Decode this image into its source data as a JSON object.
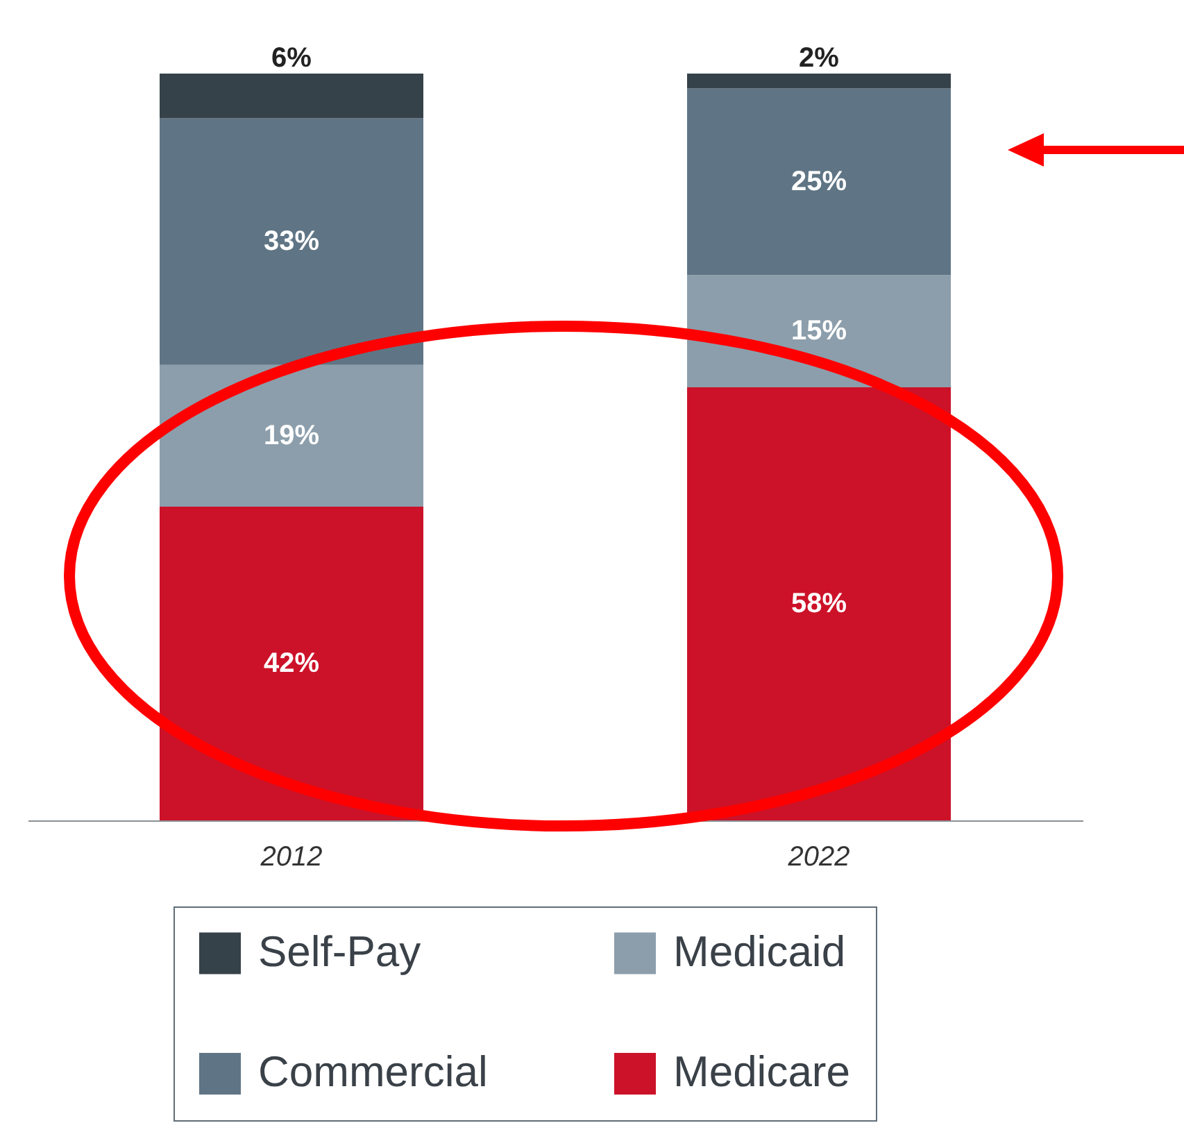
{
  "chart_data": {
    "type": "bar",
    "stacked": true,
    "categories": [
      "2012",
      "2022"
    ],
    "series": [
      {
        "name": "Medicare",
        "color": "#cc1229",
        "values": [
          42,
          58
        ],
        "value_labels": [
          "42%",
          "58%"
        ]
      },
      {
        "name": "Medicaid",
        "color": "#8c9eab",
        "values": [
          19,
          15
        ],
        "value_labels": [
          "19%",
          "15%"
        ]
      },
      {
        "name": "Commercial",
        "color": "#5f7585",
        "values": [
          33,
          25
        ],
        "value_labels": [
          "33%",
          "25%"
        ]
      },
      {
        "name": "Self-Pay",
        "color": "#36424a",
        "values": [
          6,
          2
        ],
        "value_labels": [
          "6%",
          "2%"
        ]
      }
    ],
    "legend": "bottom"
  }
}
